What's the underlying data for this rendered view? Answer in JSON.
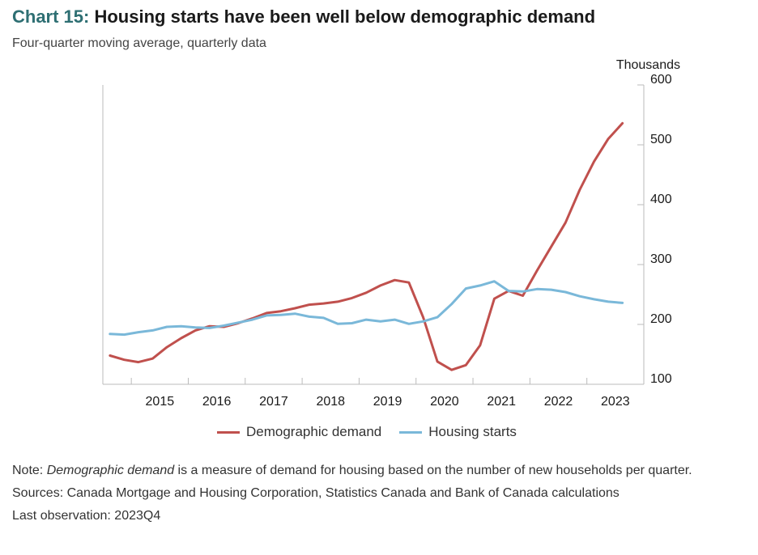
{
  "header": {
    "chart_number": "Chart 15:",
    "title": "Housing starts have been well below demographic demand",
    "subtitle": "Four-quarter moving average, quarterly data"
  },
  "notes": {
    "note_prefix": "Note: ",
    "note_term": "Demographic demand",
    "note_rest": " is a measure of demand for housing based on the number of new households per quarter.",
    "sources": "Sources: Canada Mortgage and Housing Corporation, Statistics Canada and Bank of Canada calculations",
    "last_observation": "Last observation: 2023Q4"
  },
  "chart_data": {
    "type": "line",
    "ylabel": "Thousands",
    "ylim": [
      100,
      600
    ],
    "yticks": [
      100,
      200,
      300,
      400,
      500,
      600
    ],
    "y_axis_side": "right",
    "x_tick_labels": [
      "2015",
      "2016",
      "2017",
      "2018",
      "2019",
      "2020",
      "2021",
      "2022",
      "2023"
    ],
    "x": [
      "2014Q3",
      "2014Q4",
      "2015Q1",
      "2015Q2",
      "2015Q3",
      "2015Q4",
      "2016Q1",
      "2016Q2",
      "2016Q3",
      "2016Q4",
      "2017Q1",
      "2017Q2",
      "2017Q3",
      "2017Q4",
      "2018Q1",
      "2018Q2",
      "2018Q3",
      "2018Q4",
      "2019Q1",
      "2019Q2",
      "2019Q3",
      "2019Q4",
      "2020Q1",
      "2020Q2",
      "2020Q3",
      "2020Q4",
      "2021Q1",
      "2021Q2",
      "2021Q3",
      "2021Q4",
      "2022Q1",
      "2022Q2",
      "2022Q3",
      "2022Q4",
      "2023Q1",
      "2023Q2",
      "2023Q3",
      "2023Q4"
    ],
    "series": [
      {
        "name": "Demographic demand",
        "color": "#c0504d",
        "values": [
          148,
          141,
          137,
          143,
          162,
          177,
          190,
          197,
          196,
          202,
          210,
          219,
          222,
          227,
          233,
          235,
          238,
          244,
          253,
          265,
          274,
          270,
          212,
          138,
          124,
          132,
          165,
          243,
          256,
          248,
          290,
          330,
          370,
          425,
          472,
          510,
          536,
          null
        ]
      },
      {
        "name": "Housing starts",
        "color": "#7ab8d9",
        "values": [
          184,
          183,
          187,
          190,
          196,
          197,
          195,
          194,
          198,
          203,
          208,
          215,
          216,
          218,
          213,
          211,
          201,
          202,
          208,
          205,
          208,
          201,
          205,
          212,
          234,
          260,
          265,
          272,
          256,
          255,
          259,
          258,
          254,
          247,
          242,
          238,
          236,
          null
        ]
      }
    ],
    "grid": false,
    "legend_position": "bottom"
  }
}
